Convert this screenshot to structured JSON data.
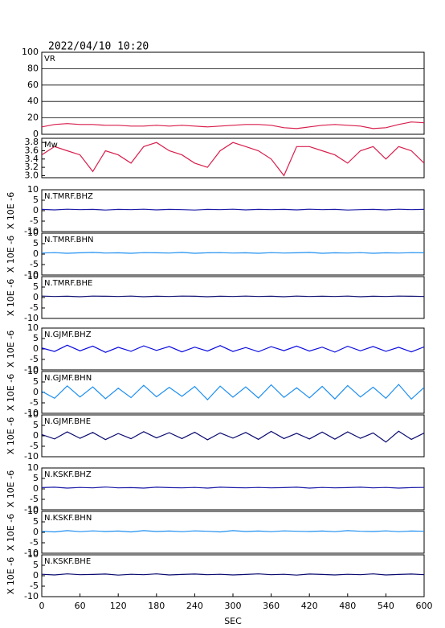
{
  "timestamp": "2022/04/10 10:20",
  "chart_data": [
    {
      "type": "line",
      "title": "VR",
      "xlim": [
        0,
        600
      ],
      "ylim": [
        0,
        100
      ],
      "yticks": [
        0,
        20,
        40,
        60,
        80,
        100
      ],
      "grid": true,
      "x": [
        0,
        20,
        40,
        60,
        80,
        100,
        120,
        140,
        160,
        180,
        200,
        220,
        240,
        260,
        280,
        300,
        320,
        340,
        360,
        380,
        400,
        420,
        440,
        460,
        480,
        500,
        520,
        540,
        560,
        580,
        600
      ],
      "series": [
        {
          "color": "#d81e4c",
          "values": [
            9,
            12,
            13,
            12,
            12,
            11,
            11,
            10,
            10,
            11,
            10,
            11,
            10,
            9,
            10,
            11,
            12,
            12,
            11,
            8,
            7,
            9,
            11,
            12,
            11,
            10,
            7,
            8,
            12,
            15,
            14
          ]
        }
      ]
    },
    {
      "type": "line",
      "title": "Mw",
      "xlim": [
        0,
        600
      ],
      "ylim": [
        2.95,
        3.9
      ],
      "yticks": [
        {
          "value": 3,
          "label": "3.0"
        },
        3.2,
        3.4,
        3.6,
        3.8
      ],
      "x": [
        0,
        20,
        40,
        60,
        80,
        100,
        120,
        140,
        160,
        180,
        200,
        220,
        240,
        260,
        280,
        300,
        320,
        340,
        360,
        380,
        400,
        420,
        440,
        460,
        480,
        500,
        520,
        540,
        560,
        580,
        600
      ],
      "series": [
        {
          "color": "#d81e4c",
          "values": [
            3.5,
            3.7,
            3.6,
            3.5,
            3.1,
            3.6,
            3.5,
            3.3,
            3.7,
            3.8,
            3.6,
            3.5,
            3.3,
            3.2,
            3.6,
            3.8,
            3.7,
            3.6,
            3.4,
            3.0,
            3.7,
            3.7,
            3.6,
            3.5,
            3.3,
            3.6,
            3.7,
            3.4,
            3.7,
            3.6,
            3.3
          ]
        }
      ]
    },
    {
      "type": "line",
      "title": "N.TMRF.BHZ",
      "ylabel": "X 10E -6",
      "xlim": [
        0,
        600
      ],
      "ylim": [
        -10,
        10
      ],
      "yticks": [
        -10,
        -5,
        0,
        5,
        10
      ],
      "x": [
        0,
        20,
        40,
        60,
        80,
        100,
        120,
        140,
        160,
        180,
        200,
        220,
        240,
        260,
        280,
        300,
        320,
        340,
        360,
        380,
        400,
        420,
        440,
        460,
        480,
        500,
        520,
        540,
        560,
        580,
        600
      ],
      "series": [
        {
          "color": "#1c1ca8",
          "values": [
            0.6,
            0.4,
            0.7,
            0.5,
            0.6,
            0.3,
            0.6,
            0.5,
            0.7,
            0.4,
            0.6,
            0.5,
            0.3,
            0.6,
            0.5,
            0.7,
            0.4,
            0.6,
            0.5,
            0.6,
            0.4,
            0.7,
            0.5,
            0.6,
            0.3,
            0.5,
            0.6,
            0.4,
            0.7,
            0.5,
            0.6
          ]
        }
      ]
    },
    {
      "type": "line",
      "title": "N.TMRF.BHN",
      "ylabel": "X 10E -6",
      "xlim": [
        0,
        600
      ],
      "ylim": [
        -10,
        10
      ],
      "yticks": [
        -10,
        -5,
        0,
        5,
        10
      ],
      "x": [
        0,
        20,
        40,
        60,
        80,
        100,
        120,
        140,
        160,
        180,
        200,
        220,
        240,
        260,
        280,
        300,
        320,
        340,
        360,
        380,
        400,
        420,
        440,
        460,
        480,
        500,
        520,
        540,
        560,
        580,
        600
      ],
      "series": [
        {
          "color": "#1e8ff0",
          "values": [
            0.5,
            0.7,
            0.4,
            0.6,
            0.8,
            0.5,
            0.6,
            0.4,
            0.7,
            0.6,
            0.5,
            0.8,
            0.4,
            0.6,
            0.7,
            0.5,
            0.6,
            0.4,
            0.7,
            0.5,
            0.6,
            0.8,
            0.4,
            0.6,
            0.5,
            0.7,
            0.4,
            0.6,
            0.5,
            0.7,
            0.6
          ]
        }
      ]
    },
    {
      "type": "line",
      "title": "N.TMRF.BHE",
      "ylabel": "X 10E -6",
      "xlim": [
        0,
        600
      ],
      "ylim": [
        -10,
        10
      ],
      "yticks": [
        -10,
        -5,
        0,
        5,
        10
      ],
      "x": [
        0,
        20,
        40,
        60,
        80,
        100,
        120,
        140,
        160,
        180,
        200,
        220,
        240,
        260,
        280,
        300,
        320,
        340,
        360,
        380,
        400,
        420,
        440,
        460,
        480,
        500,
        520,
        540,
        560,
        580,
        600
      ],
      "series": [
        {
          "color": "#0a0a70",
          "values": [
            0.7,
            0.5,
            0.6,
            0.4,
            0.7,
            0.6,
            0.5,
            0.7,
            0.4,
            0.6,
            0.5,
            0.7,
            0.6,
            0.4,
            0.6,
            0.5,
            0.7,
            0.5,
            0.6,
            0.4,
            0.7,
            0.5,
            0.6,
            0.5,
            0.7,
            0.4,
            0.6,
            0.5,
            0.7,
            0.6,
            0.5
          ]
        }
      ]
    },
    {
      "type": "line",
      "title": "N.GJMF.BHZ",
      "ylabel": "X 10E -6",
      "xlim": [
        0,
        600
      ],
      "ylim": [
        -10,
        10
      ],
      "yticks": [
        -10,
        -5,
        0,
        5,
        10
      ],
      "x": [
        0,
        20,
        40,
        60,
        80,
        100,
        120,
        140,
        160,
        180,
        200,
        220,
        240,
        260,
        280,
        300,
        320,
        340,
        360,
        380,
        400,
        420,
        440,
        460,
        480,
        500,
        520,
        540,
        560,
        580,
        600
      ],
      "series": [
        {
          "color": "#0a0ae0",
          "values": [
            0.5,
            -1.2,
            1.8,
            -0.9,
            1.4,
            -1.6,
            0.8,
            -1.1,
            1.5,
            -0.7,
            1.2,
            -1.4,
            0.9,
            -1.0,
            1.6,
            -1.2,
            0.7,
            -1.3,
            1.1,
            -0.8,
            1.4,
            -1.0,
            0.9,
            -1.5,
            1.3,
            -0.9,
            1.2,
            -1.1,
            0.8,
            -1.4,
            1.0
          ]
        }
      ]
    },
    {
      "type": "line",
      "title": "N.GJMF.BHN",
      "ylabel": "X 10E -6",
      "xlim": [
        0,
        600
      ],
      "ylim": [
        -10,
        10
      ],
      "yticks": [
        -10,
        -5,
        0,
        5,
        10
      ],
      "x": [
        0,
        20,
        40,
        60,
        80,
        100,
        120,
        140,
        160,
        180,
        200,
        220,
        240,
        260,
        280,
        300,
        320,
        340,
        360,
        380,
        400,
        420,
        440,
        460,
        480,
        500,
        520,
        540,
        560,
        580,
        600
      ],
      "series": [
        {
          "color": "#1e8ff0",
          "values": [
            0.5,
            -2.8,
            3.1,
            -2.2,
            2.6,
            -3.0,
            2.0,
            -2.5,
            3.4,
            -2.1,
            2.4,
            -1.9,
            2.8,
            -3.5,
            3.0,
            -2.3,
            2.6,
            -2.7,
            3.6,
            -2.4,
            2.2,
            -2.6,
            2.9,
            -3.1,
            3.3,
            -2.2,
            2.5,
            -2.8,
            3.8,
            -3.2,
            2.4
          ]
        }
      ]
    },
    {
      "type": "line",
      "title": "N.GJMF.BHE",
      "ylabel": "X 10E -6",
      "xlim": [
        0,
        600
      ],
      "ylim": [
        -10,
        10
      ],
      "yticks": [
        -10,
        -5,
        0,
        5,
        10
      ],
      "x": [
        0,
        20,
        40,
        60,
        80,
        100,
        120,
        140,
        160,
        180,
        200,
        220,
        240,
        260,
        280,
        300,
        320,
        340,
        360,
        380,
        400,
        420,
        440,
        460,
        480,
        500,
        520,
        540,
        560,
        580,
        600
      ],
      "series": [
        {
          "color": "#0a0a70",
          "values": [
            0.6,
            -1.5,
            1.9,
            -1.2,
            1.6,
            -1.8,
            1.1,
            -1.4,
            2.0,
            -1.0,
            1.5,
            -1.3,
            1.7,
            -1.9,
            1.4,
            -1.1,
            1.6,
            -1.7,
            2.1,
            -1.3,
            1.2,
            -1.5,
            1.8,
            -1.6,
            1.9,
            -1.2,
            1.4,
            -3.0,
            2.2,
            -1.7,
            1.3
          ]
        }
      ]
    },
    {
      "type": "line",
      "title": "N.KSKF.BHZ",
      "ylabel": "X 10E -6",
      "xlim": [
        0,
        600
      ],
      "ylim": [
        -10,
        10
      ],
      "yticks": [
        -10,
        -5,
        0,
        5,
        10
      ],
      "x": [
        0,
        20,
        40,
        60,
        80,
        100,
        120,
        140,
        160,
        180,
        200,
        220,
        240,
        260,
        280,
        300,
        320,
        340,
        360,
        380,
        400,
        420,
        440,
        460,
        480,
        500,
        520,
        540,
        560,
        580,
        600
      ],
      "series": [
        {
          "color": "#1c1ca8",
          "values": [
            0.6,
            0.8,
            0.4,
            0.7,
            0.5,
            0.9,
            0.5,
            0.6,
            0.4,
            0.8,
            0.6,
            0.5,
            0.7,
            0.4,
            0.8,
            0.6,
            0.5,
            0.7,
            0.5,
            0.6,
            0.8,
            0.4,
            0.7,
            0.5,
            0.6,
            0.8,
            0.5,
            0.7,
            0.4,
            0.6,
            0.7
          ]
        }
      ]
    },
    {
      "type": "line",
      "title": "N.KSKF.BHN",
      "ylabel": "X 10E -6",
      "xlim": [
        0,
        600
      ],
      "ylim": [
        -10,
        10
      ],
      "yticks": [
        -10,
        -5,
        0,
        5,
        10
      ],
      "x": [
        0,
        20,
        40,
        60,
        80,
        100,
        120,
        140,
        160,
        180,
        200,
        220,
        240,
        260,
        280,
        300,
        320,
        340,
        360,
        380,
        400,
        420,
        440,
        460,
        480,
        500,
        520,
        540,
        560,
        580,
        600
      ],
      "series": [
        {
          "color": "#1e8ff0",
          "values": [
            0.5,
            0.2,
            0.8,
            0.3,
            0.7,
            0.4,
            0.6,
            0.2,
            0.8,
            0.4,
            0.6,
            0.3,
            0.7,
            0.5,
            0.2,
            0.8,
            0.4,
            0.6,
            0.3,
            0.7,
            0.5,
            0.4,
            0.6,
            0.3,
            0.8,
            0.5,
            0.4,
            0.7,
            0.3,
            0.6,
            0.5
          ]
        }
      ]
    },
    {
      "type": "line",
      "title": "N.KSKF.BHE",
      "ylabel": "X 10E -6",
      "xlim": [
        0,
        600
      ],
      "ylim": [
        -10,
        10
      ],
      "yticks": [
        -10,
        -5,
        0,
        5,
        10
      ],
      "xticks": [
        0,
        60,
        120,
        180,
        240,
        300,
        360,
        420,
        480,
        540,
        600
      ],
      "xlabel": "SEC",
      "x": [
        0,
        20,
        40,
        60,
        80,
        100,
        120,
        140,
        160,
        180,
        200,
        220,
        240,
        260,
        280,
        300,
        320,
        340,
        360,
        380,
        400,
        420,
        440,
        460,
        480,
        500,
        520,
        540,
        560,
        580,
        600
      ],
      "series": [
        {
          "color": "#0a0a70",
          "values": [
            0.7,
            0.4,
            0.9,
            0.5,
            0.6,
            0.8,
            0.3,
            0.7,
            0.5,
            0.9,
            0.4,
            0.6,
            0.8,
            0.5,
            0.7,
            0.4,
            0.6,
            0.9,
            0.5,
            0.7,
            0.3,
            0.8,
            0.6,
            0.4,
            0.7,
            0.5,
            0.9,
            0.4,
            0.6,
            0.8,
            0.5
          ]
        }
      ]
    }
  ]
}
